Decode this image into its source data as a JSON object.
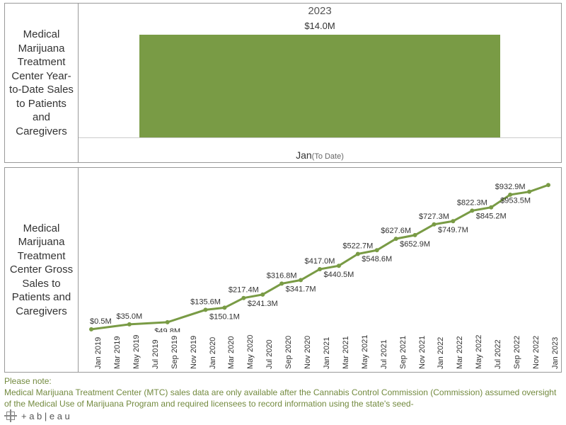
{
  "colors": {
    "series_green": "#799b45",
    "border": "#999999",
    "text": "#333333",
    "muted": "#666666",
    "footnote": "#738a3f"
  },
  "panel_ytd": {
    "title": "Medical Marijuana Treatment Center Year-to-Date Sales to Patients and Caregivers",
    "year_header": "2023",
    "bar": {
      "value": 14.0,
      "value_label": "$14.0M",
      "category_label": "Jan",
      "category_sub": "(To Date)",
      "bar_color": "#799b45"
    }
  },
  "panel_gross": {
    "title": "Medical Marijuana Treatment Center Gross Sales to Patients and Caregivers",
    "line_color": "#799b45",
    "marker_color": "#799b45",
    "point_label_fontsize": 11,
    "axis_label_fontsize": 11,
    "line_width": 3,
    "marker_radius": 3,
    "y_domain": [
      0,
      1050
    ],
    "x_labels": [
      "Jan 2019",
      "Mar 2019",
      "May 2019",
      "Jul 2019",
      "Sep 2019",
      "Nov 2019",
      "Jan 2020",
      "Mar 2020",
      "May 2020",
      "Jul 2020",
      "Sep 2020",
      "Nov 2020",
      "Jan 2021",
      "Mar 2021",
      "May 2021",
      "Jul 2021",
      "Sep 2021",
      "Nov 2021",
      "Jan 2022",
      "Mar 2022",
      "May 2022",
      "Jul 2022",
      "Sep 2022",
      "Nov 2022",
      "Jan 2023"
    ],
    "points": [
      {
        "x_idx": 0,
        "value": 0.5,
        "label": "$0.5M",
        "label_pos": "above"
      },
      {
        "x_idx": 2,
        "value": 35.0,
        "label": "$35.0M",
        "label_pos": "above"
      },
      {
        "x_idx": 4,
        "value": 49.8,
        "label": "$49.8M",
        "label_pos": "below"
      },
      {
        "x_idx": 6,
        "value": 135.6,
        "label": "$135.6M",
        "label_pos": "above"
      },
      {
        "x_idx": 7,
        "value": 150.1,
        "label": "$150.1M",
        "label_pos": "below"
      },
      {
        "x_idx": 8,
        "value": 217.4,
        "label": "$217.4M",
        "label_pos": "above"
      },
      {
        "x_idx": 9,
        "value": 241.3,
        "label": "$241.3M",
        "label_pos": "below"
      },
      {
        "x_idx": 10,
        "value": 316.8,
        "label": "$316.8M",
        "label_pos": "above"
      },
      {
        "x_idx": 11,
        "value": 341.7,
        "label": "$341.7M",
        "label_pos": "below"
      },
      {
        "x_idx": 12,
        "value": 417.0,
        "label": "$417.0M",
        "label_pos": "above"
      },
      {
        "x_idx": 13,
        "value": 440.5,
        "label": "$440.5M",
        "label_pos": "below"
      },
      {
        "x_idx": 14,
        "value": 522.7,
        "label": "$522.7M",
        "label_pos": "above"
      },
      {
        "x_idx": 15,
        "value": 548.6,
        "label": "$548.6M",
        "label_pos": "below"
      },
      {
        "x_idx": 16,
        "value": 627.6,
        "label": "$627.6M",
        "label_pos": "above"
      },
      {
        "x_idx": 17,
        "value": 652.9,
        "label": "$652.9M",
        "label_pos": "below"
      },
      {
        "x_idx": 18,
        "value": 727.3,
        "label": "$727.3M",
        "label_pos": "above"
      },
      {
        "x_idx": 19,
        "value": 749.7,
        "label": "$749.7M",
        "label_pos": "below"
      },
      {
        "x_idx": 20,
        "value": 822.3,
        "label": "$822.3M",
        "label_pos": "above"
      },
      {
        "x_idx": 21,
        "value": 845.2,
        "label": "$845.2M",
        "label_pos": "below"
      },
      {
        "x_idx": 22,
        "value": 932.9,
        "label": "$932.9M",
        "label_pos": "above"
      },
      {
        "x_idx": 23,
        "value": 953.5,
        "label": "$953.5M",
        "label_pos": "below"
      },
      {
        "x_idx": 24,
        "value": 1000.0
      }
    ]
  },
  "footnote": {
    "lead": "Please note:",
    "body": "Medical Marijuana Treatment Center (MTC) sales data are only available after the Cannabis Control Commission (Commission) assumed oversight of the Medical Use of Marijuana Program and required licensees to record information using the state's seed-"
  },
  "tableau_label": "+ a b | e a u"
}
